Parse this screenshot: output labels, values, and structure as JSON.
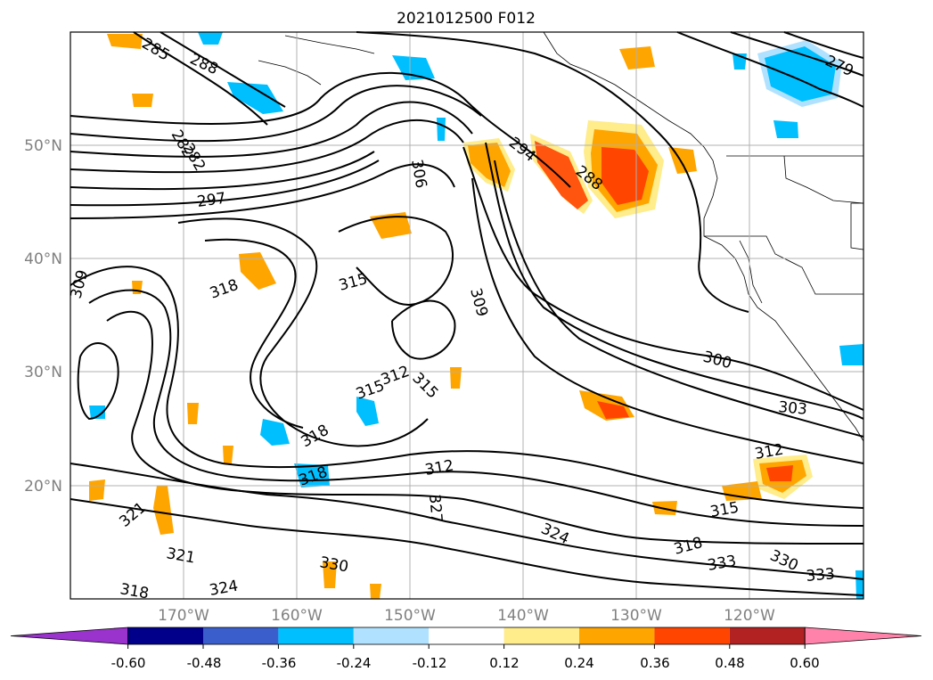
{
  "title": "2021012500 F012",
  "lat_labels": [
    "50°N",
    "40°N",
    "30°N",
    "20°N"
  ],
  "lon_labels": [
    "170°W",
    "160°W",
    "150°W",
    "140°W",
    "130°W",
    "120°W"
  ],
  "contour_labels": [
    "285",
    "288",
    "282",
    "282",
    "297",
    "306",
    "294",
    "288",
    "279",
    "309",
    "318",
    "315",
    "309",
    "300",
    "303",
    "315",
    "312",
    "315",
    "318",
    "318",
    "312",
    "327",
    "312",
    "315",
    "321",
    "321",
    "318",
    "324",
    "330",
    "318",
    "324",
    "333",
    "330",
    "333"
  ],
  "colorbar": {
    "colors": [
      "#9a32cd",
      "#00008b",
      "#3a5fcd",
      "#00bfff",
      "#b0e2ff",
      "#ffffff",
      "#ffec8b",
      "#ffa500",
      "#ff4500",
      "#b22222",
      "#ff82ab"
    ],
    "tick_labels": [
      "-0.60",
      "-0.48",
      "-0.36",
      "-0.24",
      "-0.12",
      "0.12",
      "0.24",
      "0.36",
      "0.48",
      "0.60"
    ]
  },
  "colors": {
    "ocean_bg": "#ffffff",
    "grid": "#b0b0b0",
    "contour": "#000000",
    "axis_label": "#808080"
  }
}
